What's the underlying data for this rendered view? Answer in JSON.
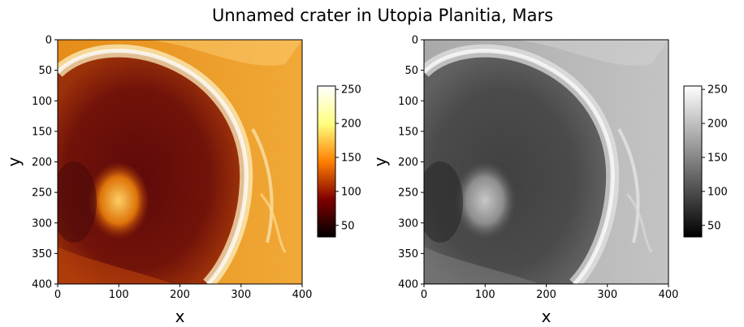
{
  "figure": {
    "title": "Unnamed crater in Utopia Planitia, Mars"
  },
  "chart_data": [
    {
      "type": "heatmap",
      "colormap": "afmhot",
      "colormap_stops": [
        "#000000",
        "#800000",
        "#ff8000",
        "#ffff80",
        "#ffffff"
      ],
      "xlabel": "x",
      "ylabel": "y",
      "xlim": [
        0,
        400
      ],
      "ylim": [
        400,
        0
      ],
      "xticks": [
        "0",
        "100",
        "200",
        "300",
        "400"
      ],
      "yticks": [
        "0",
        "50",
        "100",
        "150",
        "200",
        "250",
        "300",
        "350",
        "400"
      ],
      "colorbar": {
        "range": [
          33,
          255
        ],
        "ticks": [
          "50",
          "100",
          "150",
          "200",
          "250"
        ]
      }
    },
    {
      "type": "heatmap",
      "colormap": "gray",
      "colormap_stops": [
        "#000000",
        "#ffffff"
      ],
      "xlabel": "x",
      "ylabel": "y",
      "xlim": [
        0,
        400
      ],
      "ylim": [
        400,
        0
      ],
      "xticks": [
        "0",
        "100",
        "200",
        "300",
        "400"
      ],
      "yticks": [
        "0",
        "50",
        "100",
        "150",
        "200",
        "250",
        "300",
        "350",
        "400"
      ],
      "colorbar": {
        "range": [
          33,
          255
        ],
        "ticks": [
          "50",
          "100",
          "150",
          "200",
          "250"
        ]
      }
    }
  ]
}
